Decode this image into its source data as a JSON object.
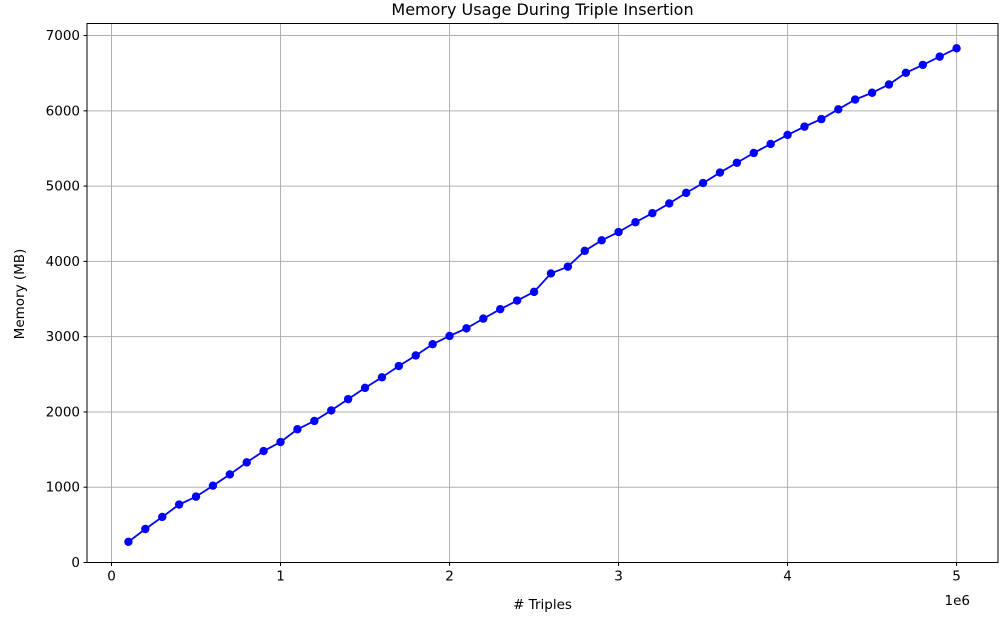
{
  "chart_data": {
    "type": "line",
    "title": "Memory Usage During Triple Insertion",
    "xlabel": "# Triples",
    "ylabel": "Memory (MB)",
    "x_offset_label": "1e6",
    "x": [
      100000,
      200000,
      300000,
      400000,
      500000,
      600000,
      700000,
      800000,
      900000,
      1000000,
      1100000,
      1200000,
      1300000,
      1400000,
      1500000,
      1600000,
      1700000,
      1800000,
      1900000,
      2000000,
      2100000,
      2200000,
      2300000,
      2400000,
      2500000,
      2600000,
      2700000,
      2800000,
      2900000,
      3000000,
      3100000,
      3200000,
      3300000,
      3400000,
      3500000,
      3600000,
      3700000,
      3800000,
      3900000,
      4000000,
      4100000,
      4200000,
      4300000,
      4400000,
      4500000,
      4600000,
      4700000,
      4800000,
      4900000,
      5000000
    ],
    "y": [
      275,
      445,
      605,
      770,
      875,
      1020,
      1170,
      1330,
      1480,
      1600,
      1770,
      1880,
      2020,
      2170,
      2320,
      2460,
      2610,
      2750,
      2900,
      3010,
      3110,
      3240,
      3365,
      3480,
      3595,
      3840,
      3930,
      4140,
      4280,
      4390,
      4520,
      4640,
      4770,
      4910,
      5040,
      5180,
      5310,
      5440,
      5560,
      5680,
      5790,
      5890,
      6020,
      6150,
      6240,
      6350,
      6505,
      6610,
      6720,
      6830
    ],
    "xlim": [
      -145000,
      5245000
    ],
    "ylim": [
      0,
      7160
    ],
    "xticks": [
      0,
      1000000,
      2000000,
      3000000,
      4000000,
      5000000
    ],
    "xtick_labels": [
      "0",
      "1",
      "2",
      "3",
      "4",
      "5"
    ],
    "yticks": [
      0,
      1000,
      2000,
      3000,
      4000,
      5000,
      6000,
      7000
    ],
    "ytick_labels": [
      "0",
      "1000",
      "2000",
      "3000",
      "4000",
      "5000",
      "6000",
      "7000"
    ],
    "grid": true,
    "legend": null,
    "line_color": "#0000ff",
    "marker": "o",
    "marker_color": "#0000ff",
    "marker_radius": 4.2,
    "line_width": 1.8,
    "grid_color": "#b0b0b0",
    "spine_color": "#000000",
    "background": "#ffffff",
    "text_color": "#000000"
  }
}
